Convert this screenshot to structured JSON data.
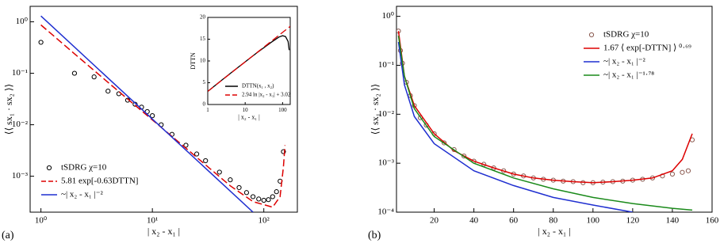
{
  "chart_data": [
    {
      "type": "line",
      "panel_label": "(a)",
      "xlabel": "| x₂ - x₁ |",
      "ylabel": "⟨⟨ sx₁ · sx₂ ⟩⟩",
      "xlog": true,
      "ylog": true,
      "xlim": [
        0.8,
        200
      ],
      "ylim": [
        0.0002,
        2
      ],
      "xticks": [
        {
          "value": 1,
          "label": "10⁰"
        },
        {
          "value": 10,
          "label": "10¹"
        },
        {
          "value": 100,
          "label": "10²"
        }
      ],
      "yticks": [
        {
          "value": 0.001,
          "label": "10⁻³"
        },
        {
          "value": 0.01,
          "label": "10⁻²"
        },
        {
          "value": 0.1,
          "label": "10⁻¹"
        },
        {
          "value": 1,
          "label": "10⁰"
        }
      ],
      "legend": "lower left",
      "series": [
        {
          "name": "tSDRG χ=10",
          "style": "markers",
          "color": "#000000",
          "x": [
            1,
            2,
            3,
            4,
            5,
            6,
            7,
            8,
            9,
            10,
            12,
            15,
            20,
            25,
            30,
            40,
            50,
            60,
            70,
            80,
            90,
            100,
            110,
            120,
            130,
            140,
            150
          ],
          "values": [
            0.4,
            0.1,
            0.085,
            0.045,
            0.04,
            0.03,
            0.025,
            0.022,
            0.018,
            0.015,
            0.01,
            0.0065,
            0.004,
            0.0027,
            0.002,
            0.0012,
            0.00085,
            0.0006,
            0.00048,
            0.0004,
            0.00036,
            0.00034,
            0.00035,
            0.0004,
            0.0005,
            0.0008,
            0.003
          ]
        },
        {
          "name": "5.81 exp[-0.63DTTN]",
          "style": "dashed",
          "color": "#dd0000",
          "x": [
            1,
            2,
            5,
            10,
            20,
            50,
            80,
            100,
            120,
            140,
            150,
            155
          ],
          "values": [
            0.87,
            0.24,
            0.044,
            0.0124,
            0.0035,
            0.00065,
            0.00032,
            0.00028,
            0.00025,
            0.0004,
            0.0015,
            0.004
          ]
        },
        {
          "name": "~| x₂ - x₁ |⁻²",
          "style": "solid",
          "color": "#1f2fd0",
          "x": [
            1,
            80
          ],
          "values": [
            1.3,
            0.0002
          ]
        }
      ]
    },
    {
      "type": "line",
      "inset": true,
      "xlabel": "| x₂ - x₁ |",
      "ylabel": "DTTN",
      "xlog": true,
      "ylog": false,
      "xlim": [
        1,
        160
      ],
      "ylim": [
        0,
        20
      ],
      "xticks": [
        1,
        10,
        100
      ],
      "yticks": [
        0,
        5,
        10,
        15,
        20
      ],
      "legend": "lower right",
      "series": [
        {
          "name": "DTTN(x₁ , x₂)",
          "style": "solid",
          "color": "#000000",
          "x": [
            1,
            2,
            5,
            10,
            20,
            50,
            80,
            100,
            120,
            140,
            150
          ],
          "values": [
            3.0,
            5.1,
            7.8,
            9.8,
            11.8,
            14.3,
            15.5,
            15.8,
            15.6,
            14.5,
            12.5
          ]
        },
        {
          "name": "2.94 ln |x₂ - x₁| + 3.02",
          "style": "dashed",
          "color": "#dd0000",
          "x": [
            1,
            160
          ],
          "values": [
            3.02,
            17.94
          ]
        }
      ]
    },
    {
      "type": "line",
      "panel_label": "(b)",
      "xlabel": "| x₂ - x₁ |",
      "ylabel": "⟨⟨ sx₁ · sx₂ ⟩⟩",
      "xlog": false,
      "ylog": true,
      "xlim": [
        1,
        160
      ],
      "ylim": [
        0.0001,
        1.6
      ],
      "xticks": [
        20,
        40,
        60,
        80,
        100,
        120,
        140,
        160
      ],
      "yticks": [
        {
          "value": 0.0001,
          "label": "10⁻⁴"
        },
        {
          "value": 0.001,
          "label": "10⁻³"
        },
        {
          "value": 0.01,
          "label": "10⁻²"
        },
        {
          "value": 0.1,
          "label": "10⁻¹"
        },
        {
          "value": 1,
          "label": "10⁰"
        }
      ],
      "legend": "upper right",
      "series": [
        {
          "name": "tSDRG χ=10",
          "style": "markers",
          "color": "#8a5a50",
          "x": [
            2,
            3,
            4,
            6,
            8,
            10,
            13,
            16,
            20,
            25,
            30,
            35,
            40,
            45,
            50,
            55,
            60,
            65,
            70,
            75,
            80,
            85,
            90,
            95,
            100,
            105,
            110,
            115,
            120,
            125,
            130,
            135,
            140,
            145,
            148,
            150
          ],
          "values": [
            0.5,
            0.2,
            0.11,
            0.045,
            0.024,
            0.015,
            0.0085,
            0.006,
            0.004,
            0.0026,
            0.0019,
            0.0014,
            0.0011,
            0.00095,
            0.0008,
            0.0007,
            0.0006,
            0.00055,
            0.0005,
            0.00047,
            0.00045,
            0.00043,
            0.00042,
            0.0004,
            0.0004,
            0.00041,
            0.00042,
            0.00043,
            0.00045,
            0.00047,
            0.0005,
            0.00055,
            0.0006,
            0.00065,
            0.0007,
            0.003
          ]
        },
        {
          "name": "1.67 ⟨ exp[-DTTN] ⟩ ⁰·⁶⁹",
          "style": "solid",
          "color": "#dd0000",
          "x": [
            2,
            5,
            10,
            20,
            30,
            40,
            50,
            60,
            70,
            80,
            90,
            100,
            110,
            120,
            130,
            140,
            145,
            150
          ],
          "values": [
            0.5,
            0.06,
            0.015,
            0.004,
            0.0018,
            0.0011,
            0.0008,
            0.0006,
            0.0005,
            0.00045,
            0.00042,
            0.0004,
            0.00042,
            0.00045,
            0.0005,
            0.0007,
            0.0012,
            0.004
          ]
        },
        {
          "name": "~| x₂ - x₁ |⁻²",
          "style": "solid",
          "color": "#1f2fd0",
          "x": [
            2,
            5,
            10,
            20,
            40,
            60,
            80,
            100,
            120
          ],
          "values": [
            0.3,
            0.04,
            0.009,
            0.0025,
            0.0007,
            0.00035,
            0.0002,
            0.00014,
            0.0001
          ]
        },
        {
          "name": "~| x₂ - x₁ |⁻¹·⁷⁸",
          "style": "solid",
          "color": "#1a8a1a",
          "x": [
            2,
            5,
            10,
            20,
            40,
            60,
            80,
            100,
            120,
            140,
            150
          ],
          "values": [
            0.4,
            0.06,
            0.013,
            0.0035,
            0.001,
            0.0005,
            0.0003,
            0.0002,
            0.00015,
            0.00012,
            0.00011
          ]
        }
      ]
    }
  ]
}
